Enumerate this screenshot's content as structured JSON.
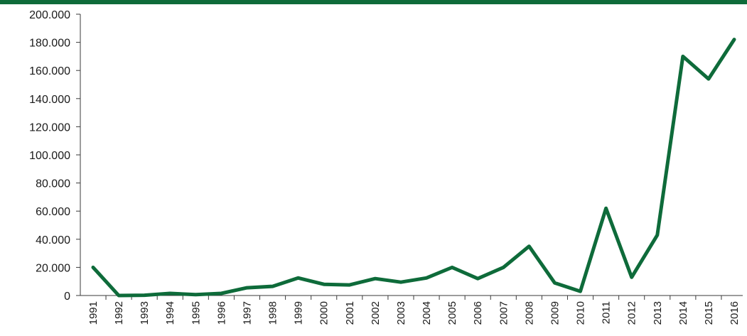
{
  "accent_color": "#0e6b3a",
  "chart_data": {
    "type": "line",
    "title": "",
    "xlabel": "",
    "ylabel": "",
    "ylim": [
      0,
      200000
    ],
    "yticks": [
      {
        "value": 0,
        "label": "0"
      },
      {
        "value": 20000,
        "label": "20.000"
      },
      {
        "value": 40000,
        "label": "40.000"
      },
      {
        "value": 60000,
        "label": "60.000"
      },
      {
        "value": 80000,
        "label": "80.000"
      },
      {
        "value": 100000,
        "label": "100.000"
      },
      {
        "value": 120000,
        "label": "120.000"
      },
      {
        "value": 140000,
        "label": "140.000"
      },
      {
        "value": 160000,
        "label": "160.000"
      },
      {
        "value": 180000,
        "label": "180.000"
      },
      {
        "value": 200000,
        "label": "200.000"
      }
    ],
    "categories": [
      "1991",
      "1992",
      "1993",
      "1994",
      "1995",
      "1996",
      "1997",
      "1998",
      "1999",
      "2000",
      "2001",
      "2002",
      "2003",
      "2004",
      "2005",
      "2006",
      "2007",
      "2008",
      "2009",
      "2010",
      "2011",
      "2012",
      "2013",
      "2014",
      "2015",
      "2016"
    ],
    "grid": false,
    "legend": "none",
    "series": [
      {
        "color": "#0e6b3a",
        "values": [
          20000,
          0,
          200,
          1500,
          600,
          1500,
          5500,
          6500,
          12500,
          8000,
          7500,
          12000,
          9500,
          12500,
          20000,
          12000,
          20000,
          35000,
          9000,
          3000,
          62000,
          13000,
          43000,
          170000,
          154000,
          182000
        ]
      }
    ]
  }
}
